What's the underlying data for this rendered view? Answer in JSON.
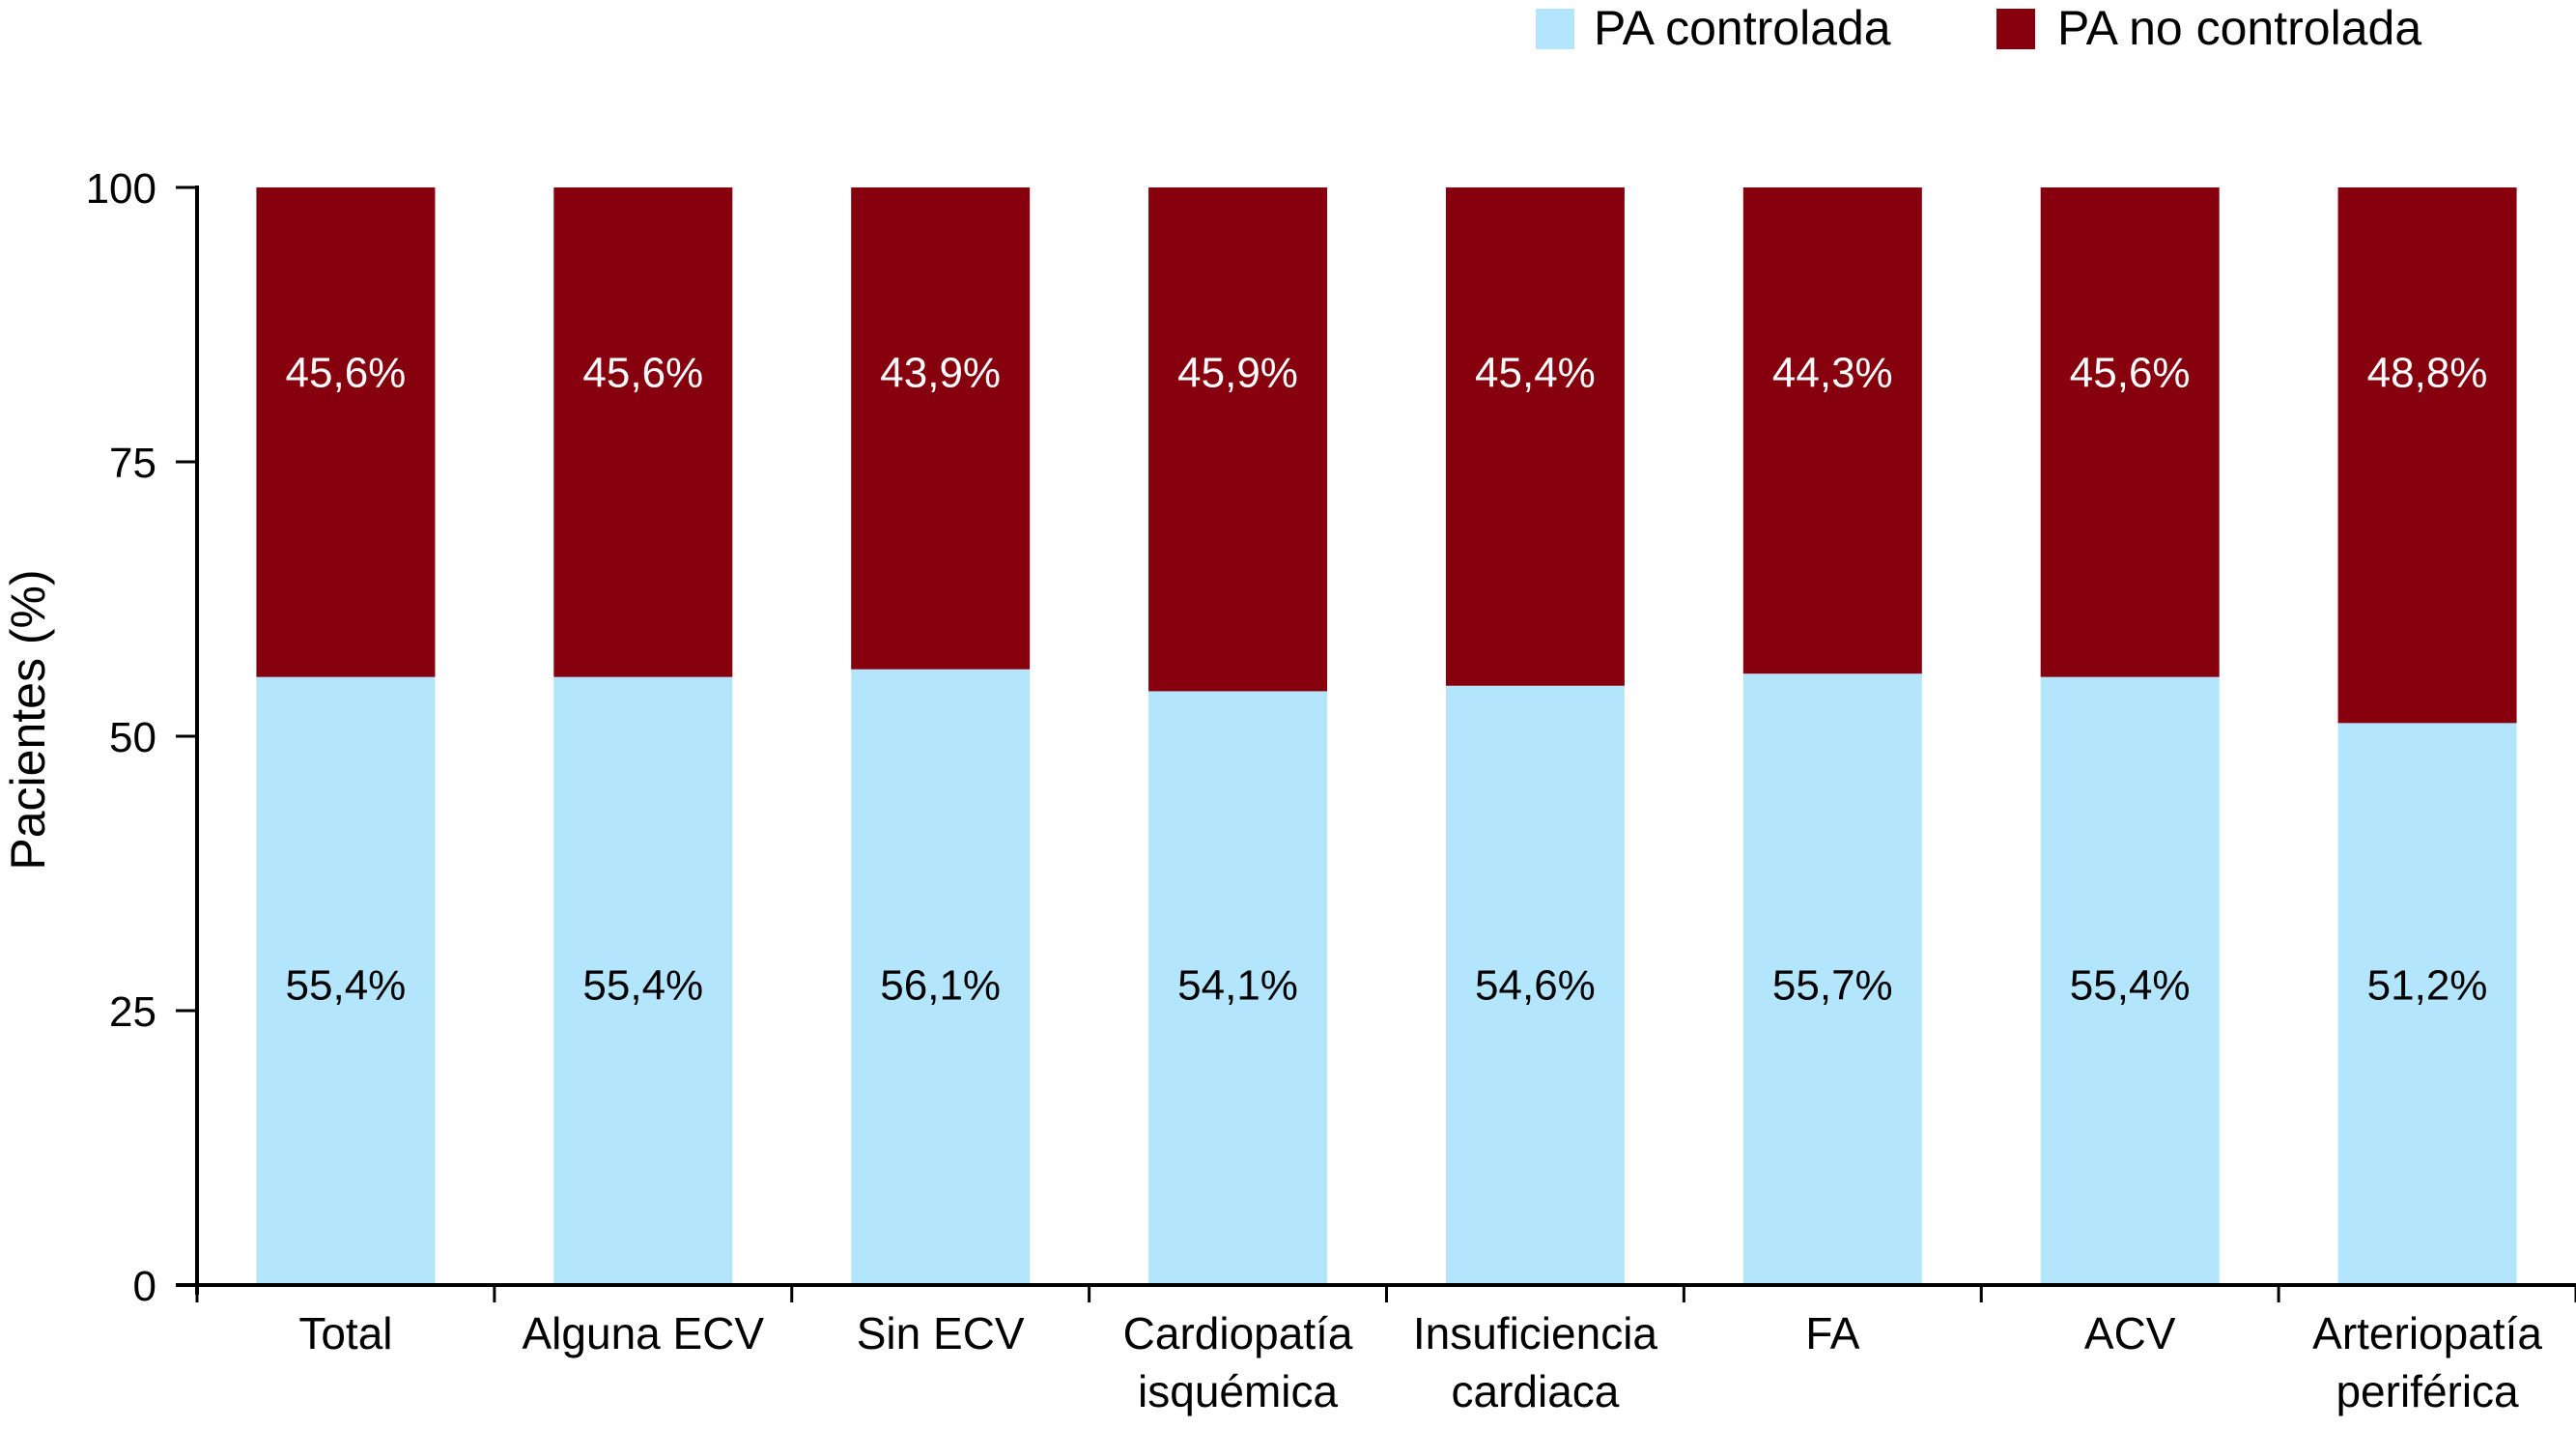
{
  "chart_data": {
    "type": "bar",
    "stacked": true,
    "title": "",
    "xlabel": "",
    "ylabel": "Pacientes (%)",
    "ylim": [
      0,
      100
    ],
    "yticks": [
      "0",
      "25",
      "50",
      "75",
      "100"
    ],
    "grid": false,
    "legend_position": "top-right",
    "categories": [
      [
        "Total"
      ],
      [
        "Alguna ECV"
      ],
      [
        "Sin ECV"
      ],
      [
        "Cardiopatía",
        "isquémica"
      ],
      [
        "Insuficiencia",
        "cardiaca"
      ],
      [
        "FA"
      ],
      [
        "ACV"
      ],
      [
        "Arteriopatía",
        "periférica"
      ]
    ],
    "series": [
      {
        "name": "PA controlada",
        "color": "#b3e5fc",
        "values": [
          55.4,
          55.4,
          56.1,
          54.1,
          54.6,
          55.7,
          55.4,
          51.2
        ],
        "labels": [
          "55,4%",
          "55,4%",
          "56,1%",
          "54,1%",
          "54,6%",
          "55,7%",
          "55,4%",
          "51,2%"
        ],
        "label_color": "#000000"
      },
      {
        "name": "PA no controlada",
        "color": "#86000e",
        "values": [
          45.6,
          45.6,
          43.9,
          45.9,
          45.4,
          44.3,
          45.6,
          48.8
        ],
        "labels": [
          "45,6%",
          "45,6%",
          "43,9%",
          "45,9%",
          "45,4%",
          "44,3%",
          "45,6%",
          "48,8%"
        ],
        "label_color": "#ffffff"
      }
    ]
  }
}
